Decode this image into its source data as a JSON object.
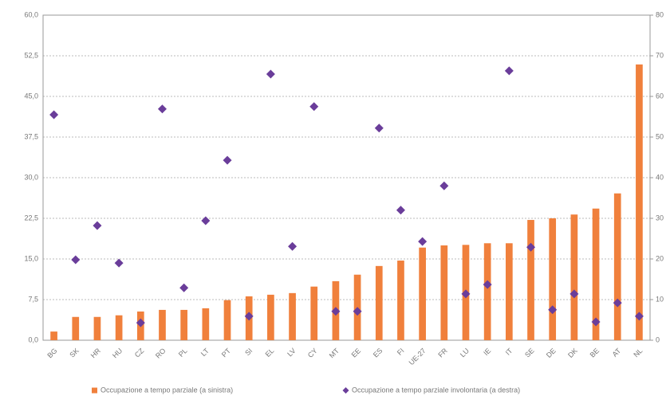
{
  "chart_data": {
    "type": "bar-scatter",
    "categories": [
      "BG",
      "SK",
      "HR",
      "HU",
      "CZ",
      "RO",
      "PL",
      "LT",
      "PT",
      "SI",
      "EL",
      "LV",
      "CY",
      "MT",
      "EE",
      "ES",
      "FI",
      "UE-27",
      "FR",
      "LU",
      "IE",
      "IT",
      "SE",
      "DE",
      "DK",
      "BE",
      "AT",
      "NL"
    ],
    "series": [
      {
        "name": "Occupazione a tempo parziale (a sinistra)",
        "color": "#f0803c",
        "axis": "y",
        "values": [
          1.6,
          4.3,
          4.3,
          4.6,
          5.3,
          5.6,
          5.6,
          5.9,
          7.4,
          8.1,
          8.4,
          8.7,
          9.9,
          10.9,
          12.1,
          13.7,
          14.7,
          17.1,
          17.5,
          17.6,
          17.9,
          17.9,
          22.2,
          22.5,
          23.2,
          24.3,
          27.1,
          50.9
        ]
      },
      {
        "name": "Occupazione a tempo parziale involontaria (a destra)",
        "color": "#6a3d9a",
        "axis": "y2",
        "values": [
          55.5,
          19.8,
          28.2,
          19.0,
          4.3,
          56.9,
          12.9,
          29.4,
          44.3,
          5.9,
          65.5,
          23.1,
          57.5,
          7.1,
          7.1,
          52.2,
          32.0,
          24.3,
          38.0,
          11.4,
          13.7,
          66.3,
          22.9,
          7.5,
          11.4,
          4.5,
          9.2,
          5.9
        ]
      }
    ],
    "ylim": [
      0,
      60
    ],
    "yticks": [
      {
        "value": 0,
        "label": "0,0"
      },
      {
        "value": 7.5,
        "label": "7,5"
      },
      {
        "value": 15,
        "label": "15,0"
      },
      {
        "value": 22.5,
        "label": "22,5"
      },
      {
        "value": 30,
        "label": "30,0"
      },
      {
        "value": 37.5,
        "label": "37,5"
      },
      {
        "value": 45,
        "label": "45,0"
      },
      {
        "value": 52.5,
        "label": "52,5"
      },
      {
        "value": 60,
        "label": "60,0"
      }
    ],
    "y2lim": [
      0,
      80
    ],
    "y2ticks": [
      0,
      10,
      20,
      30,
      40,
      50,
      60,
      70,
      80
    ],
    "grid": true
  }
}
